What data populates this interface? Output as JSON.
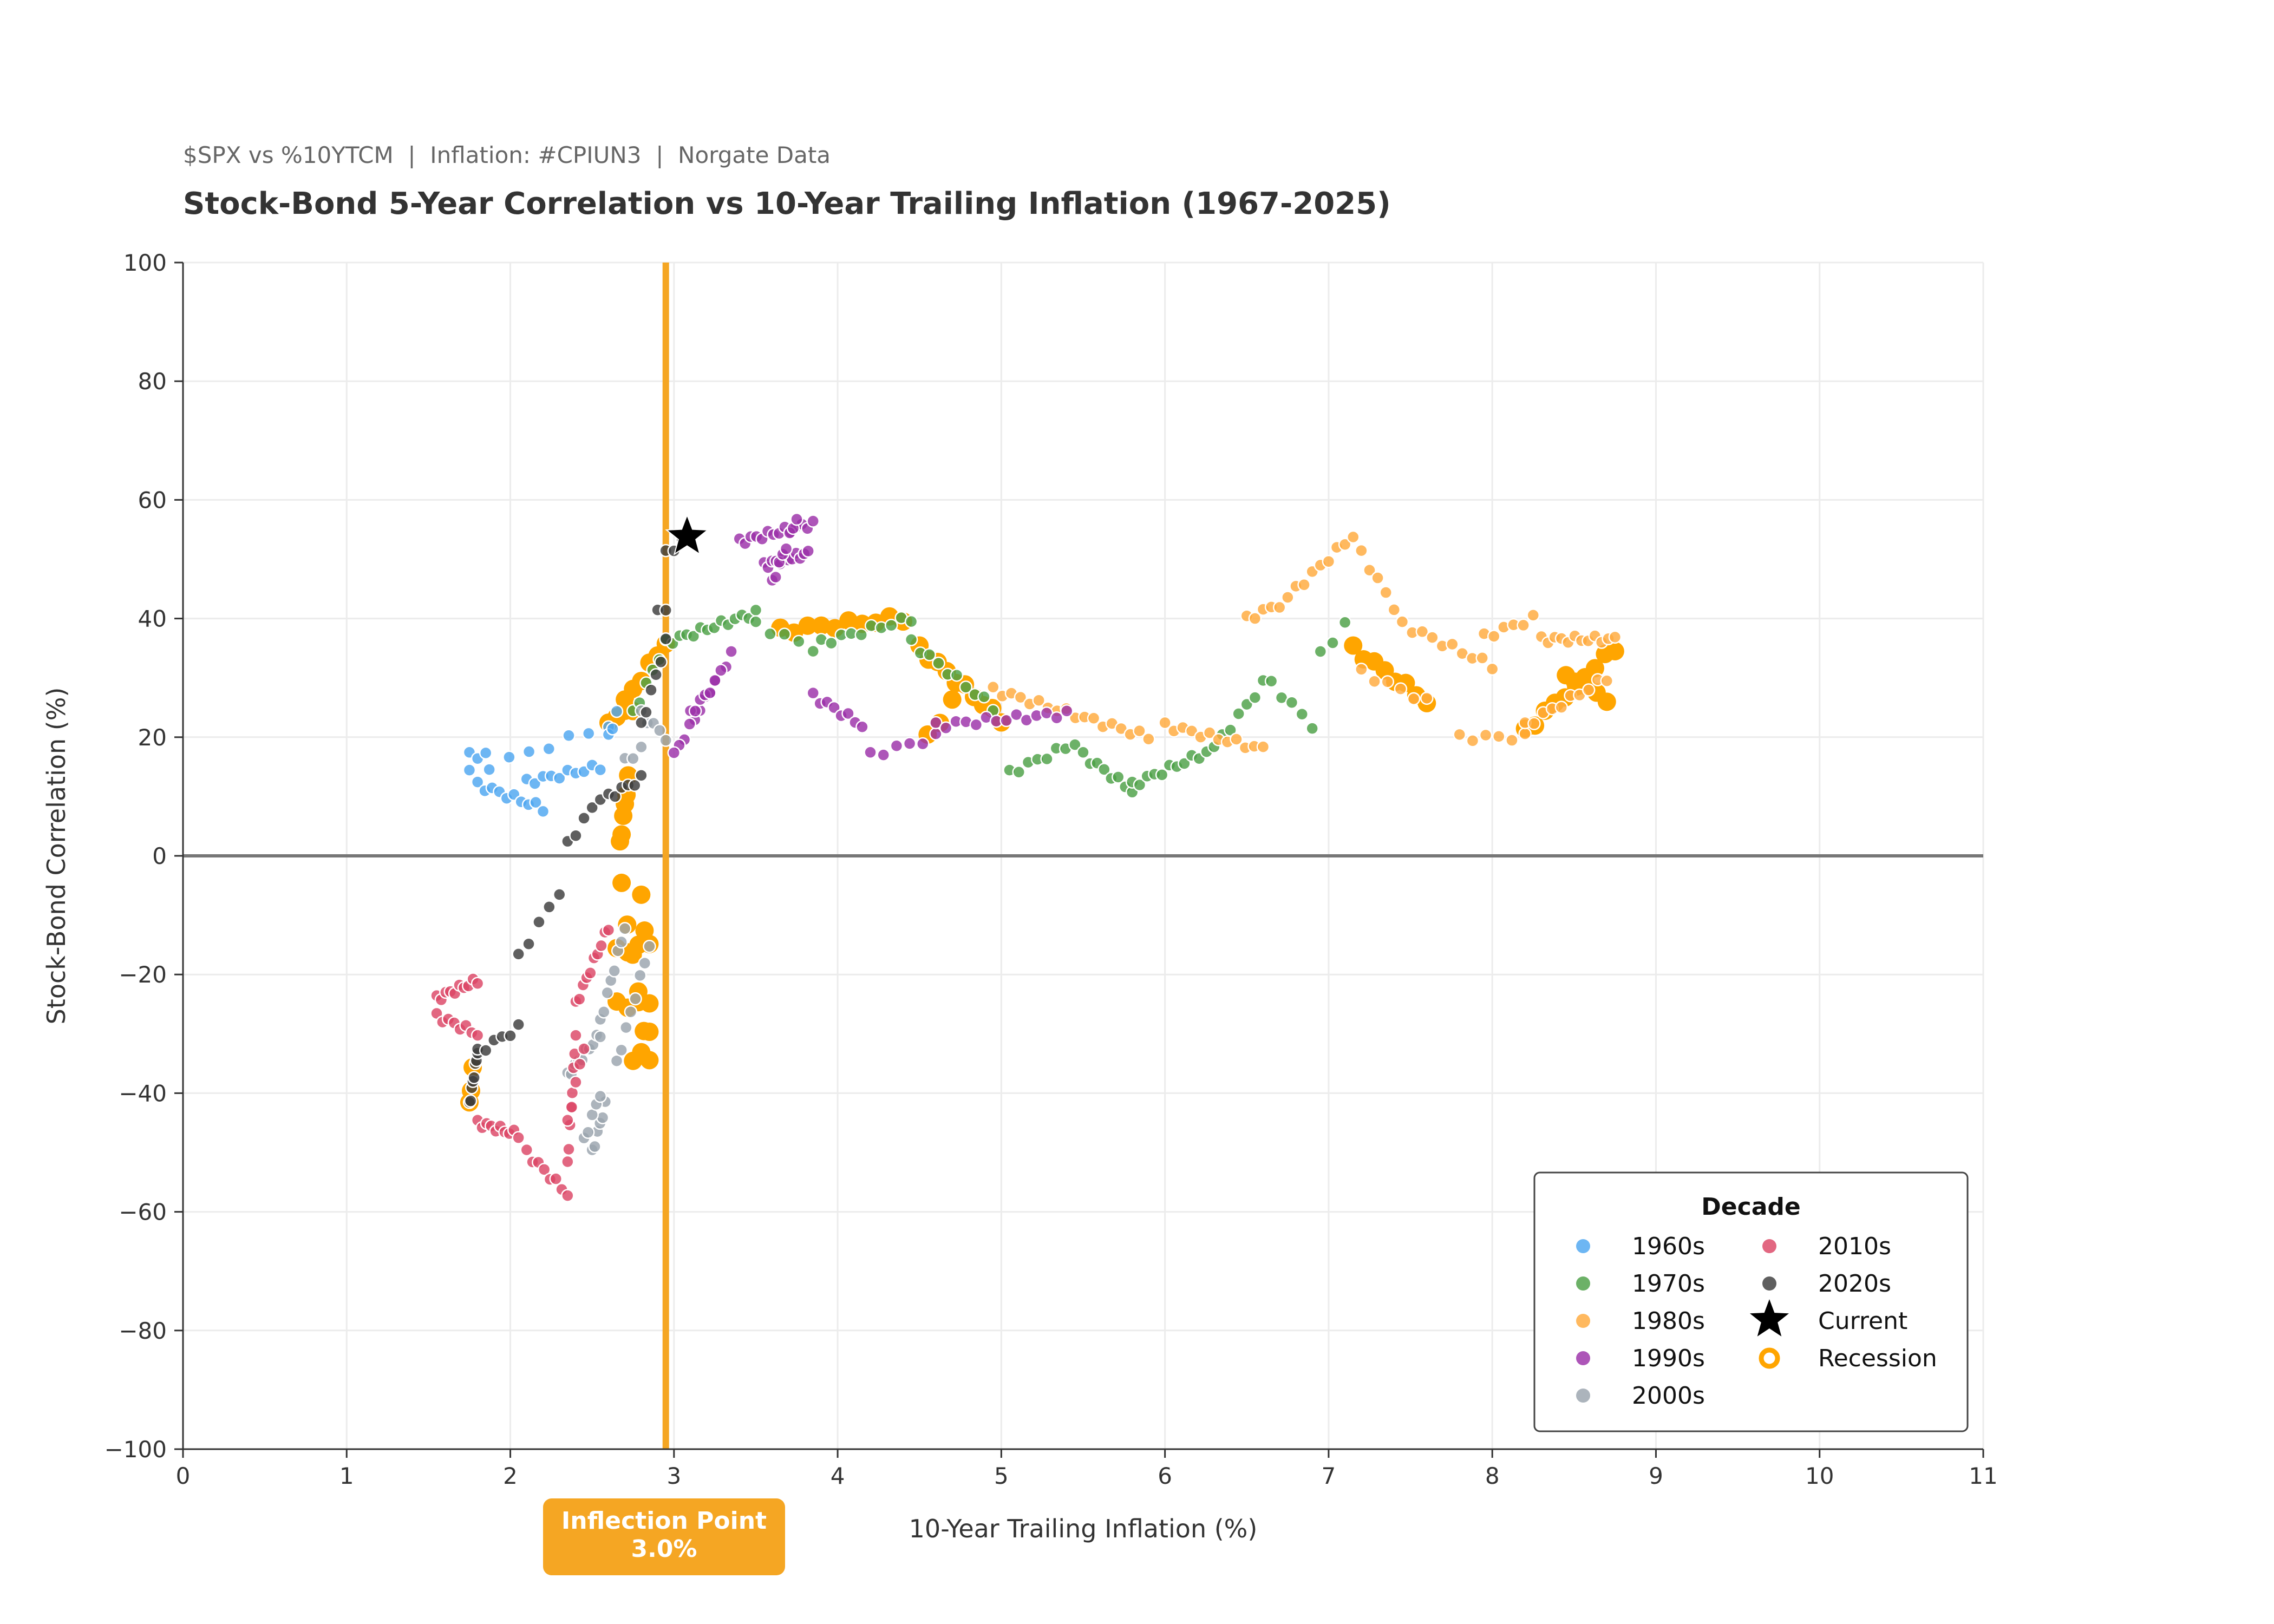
{
  "header": {
    "subtitle": "$SPX vs %10YTCM  |  Inflation: #CPIUN3  |  Norgate Data",
    "title": "Stock-Bond 5-Year Correlation vs 10-Year Trailing Inflation (1967-2025)"
  },
  "annotation": {
    "line1": "Inflection Point",
    "line2": "3.0%"
  },
  "colors": {
    "1960s": "#4DA6F0",
    "1970s": "#4CA045",
    "1980s": "#FFAA3C",
    "1990s": "#9B30A8",
    "2000s": "#9AA3AD",
    "2010s": "#DC4665",
    "2020s": "#3C3C3C",
    "recession": "#FFA500",
    "inflection_line": "#F5A623",
    "current": "#000000"
  },
  "chart_data": {
    "type": "scatter",
    "title": "Stock-Bond 5-Year Correlation vs 10-Year Trailing Inflation (1967-2025)",
    "xlabel": "10-Year Trailing Inflation (%)",
    "ylabel": "Stock-Bond Correlation (%)",
    "xlim": [
      0,
      11
    ],
    "ylim": [
      -100,
      100
    ],
    "xticks": [
      "0",
      "1",
      "2",
      "3",
      "4",
      "5",
      "6",
      "7",
      "8",
      "9",
      "10",
      "11"
    ],
    "yticks": [
      "100",
      "80",
      "60",
      "40",
      "20",
      "0",
      "−20",
      "−40",
      "−60",
      "−80",
      "−100"
    ],
    "grid": true,
    "zero_line": 0,
    "inflection_x": 2.95,
    "legend": {
      "title": "Decade",
      "position": "lower-right",
      "entries": [
        "1960s",
        "1970s",
        "1980s",
        "1990s",
        "2000s",
        "2010s",
        "2020s",
        "Current",
        "Recession"
      ]
    },
    "current": {
      "x": 3.08,
      "y": 53.8
    },
    "series": [
      {
        "name": "1960s",
        "segments": [
          {
            "from": [
              1.75,
              14
            ],
            "to": [
              2.6,
              22
            ],
            "n": 8
          },
          {
            "from": [
              1.75,
              17
            ],
            "to": [
              1.85,
              17
            ],
            "n": 3
          },
          {
            "from": [
              1.8,
              12
            ],
            "to": [
              2.2,
              8
            ],
            "n": 10
          },
          {
            "from": [
              2.1,
              12.5
            ],
            "to": [
              2.55,
              15
            ],
            "n": 10
          },
          {
            "from": [
              2.6,
              20
            ],
            "to": [
              2.65,
              24
            ],
            "n": 3
          }
        ]
      },
      {
        "name": "1970s",
        "segments": [
          {
            "from": [
              2.75,
              24
            ],
            "to": [
              2.95,
              36
            ],
            "n": 6
          },
          {
            "from": [
              2.95,
              36
            ],
            "to": [
              3.5,
              41
            ],
            "n": 14
          },
          {
            "from": [
              3.5,
              39
            ],
            "to": [
              3.85,
              35
            ],
            "n": 5
          },
          {
            "from": [
              3.9,
              36
            ],
            "to": [
              4.45,
              40
            ],
            "n": 10
          },
          {
            "from": [
              4.45,
              36
            ],
            "to": [
              4.95,
              25
            ],
            "n": 10
          },
          {
            "from": [
              5.05,
              14
            ],
            "to": [
              5.45,
              19
            ],
            "n": 8
          },
          {
            "from": [
              5.5,
              17
            ],
            "to": [
              5.8,
              11
            ],
            "n": 8
          },
          {
            "from": [
              5.8,
              12
            ],
            "to": [
              6.3,
              18
            ],
            "n": 12
          },
          {
            "from": [
              6.35,
              20
            ],
            "to": [
              6.6,
              29
            ],
            "n": 6
          },
          {
            "from": [
              6.65,
              29
            ],
            "to": [
              6.9,
              22
            ],
            "n": 5
          },
          {
            "from": [
              6.95,
              34
            ],
            "to": [
              7.1,
              39
            ],
            "n": 3
          }
        ]
      },
      {
        "name": "1980s",
        "segments": [
          {
            "from": [
              4.95,
              28
            ],
            "to": [
              5.9,
              20
            ],
            "n": 18
          },
          {
            "from": [
              6.0,
              22
            ],
            "to": [
              6.6,
              18
            ],
            "n": 12
          },
          {
            "from": [
              6.5,
              40
            ],
            "to": [
              6.75,
              43
            ],
            "n": 6
          },
          {
            "from": [
              6.8,
              45
            ],
            "to": [
              7.15,
              54
            ],
            "n": 8
          },
          {
            "from": [
              7.2,
              51
            ],
            "to": [
              7.4,
              42
            ],
            "n": 5
          },
          {
            "from": [
              7.45,
              39
            ],
            "to": [
              8.0,
              32
            ],
            "n": 10
          },
          {
            "from": [
              7.8,
              20
            ],
            "to": [
              8.2,
              20
            ],
            "n": 6
          },
          {
            "from": [
              7.95,
              37
            ],
            "to": [
              8.25,
              40
            ],
            "n": 6
          },
          {
            "from": [
              8.3,
              36.5
            ],
            "to": [
              8.75,
              36.5
            ],
            "n": 12
          },
          {
            "from": [
              7.2,
              31
            ],
            "to": [
              7.6,
              26
            ],
            "n": 6
          },
          {
            "from": [
              8.2,
              22
            ],
            "to": [
              8.7,
              30
            ],
            "n": 10
          }
        ]
      },
      {
        "name": "1990s",
        "segments": [
          {
            "from": [
              3.4,
              53
            ],
            "to": [
              3.85,
              56
            ],
            "n": 14
          },
          {
            "from": [
              3.55,
              49
            ],
            "to": [
              3.82,
              51
            ],
            "n": 12
          },
          {
            "from": [
              3.6,
              46
            ],
            "to": [
              3.75,
              57
            ],
            "n": 8
          },
          {
            "from": [
              3.35,
              34
            ],
            "to": [
              3.0,
              17
            ],
            "n": 12
          },
          {
            "from": [
              3.1,
              24
            ],
            "to": [
              3.25,
              29
            ],
            "n": 6
          },
          {
            "from": [
              3.85,
              27
            ],
            "to": [
              4.15,
              22
            ],
            "n": 8
          },
          {
            "from": [
              4.2,
              17
            ],
            "to": [
              4.6,
              20
            ],
            "n": 6
          },
          {
            "from": [
              4.6,
              22
            ],
            "to": [
              5.4,
              24
            ],
            "n": 14
          }
        ]
      },
      {
        "name": "2000s",
        "segments": [
          {
            "from": [
              2.8,
              24
            ],
            "to": [
              2.95,
              20
            ],
            "n": 5
          },
          {
            "from": [
              2.5,
              -50
            ],
            "to": [
              2.58,
              -42
            ],
            "n": 6
          },
          {
            "from": [
              2.35,
              -37
            ],
            "to": [
              2.55,
              -30
            ],
            "n": 10
          },
          {
            "from": [
              2.45,
              -48
            ],
            "to": [
              2.55,
              -40
            ],
            "n": 5
          },
          {
            "from": [
              2.55,
              -28
            ],
            "to": [
              2.7,
              -12
            ],
            "n": 8
          },
          {
            "from": [
              2.65,
              -35
            ],
            "to": [
              2.85,
              -15
            ],
            "n": 8
          },
          {
            "from": [
              2.7,
              16
            ],
            "to": [
              2.8,
              18
            ],
            "n": 3
          }
        ]
      },
      {
        "name": "2010s",
        "segments": [
          {
            "from": [
              1.55,
              -24
            ],
            "to": [
              1.8,
              -21
            ],
            "n": 10
          },
          {
            "from": [
              1.55,
              -27
            ],
            "to": [
              1.8,
              -30
            ],
            "n": 8
          },
          {
            "from": [
              1.8,
              -45
            ],
            "to": [
              2.05,
              -47
            ],
            "n": 10
          },
          {
            "from": [
              2.1,
              -50
            ],
            "to": [
              2.35,
              -57
            ],
            "n": 8
          },
          {
            "from": [
              2.35,
              -52
            ],
            "to": [
              2.4,
              -30
            ],
            "n": 8
          },
          {
            "from": [
              2.4,
              -25
            ],
            "to": [
              2.6,
              -12
            ],
            "n": 10
          },
          {
            "from": [
              2.35,
              -45
            ],
            "to": [
              2.45,
              -32
            ],
            "n": 5
          }
        ]
      },
      {
        "name": "2020s",
        "segments": [
          {
            "from": [
              1.75,
              -42
            ],
            "to": [
              1.8,
              -33
            ],
            "n": 8
          },
          {
            "from": [
              1.8,
              -33
            ],
            "to": [
              2.05,
              -29
            ],
            "n": 6
          },
          {
            "from": [
              2.05,
              -17
            ],
            "to": [
              2.3,
              -6
            ],
            "n": 5
          },
          {
            "from": [
              2.35,
              2
            ],
            "to": [
              2.55,
              10
            ],
            "n": 5
          },
          {
            "from": [
              2.6,
              10
            ],
            "to": [
              2.8,
              13
            ],
            "n": 6
          },
          {
            "from": [
              2.8,
              22
            ],
            "to": [
              2.95,
              36
            ],
            "n": 6
          },
          {
            "from": [
              2.95,
              51
            ],
            "to": [
              3.05,
              53
            ],
            "n": 3
          },
          {
            "from": [
              2.9,
              41
            ],
            "to": [
              2.95,
              42
            ],
            "n": 2
          }
        ]
      }
    ],
    "recessions": [
      {
        "from": [
          2.67,
          2
        ],
        "to": [
          2.72,
          13
        ],
        "n": 6
      },
      {
        "from": [
          2.6,
          22
        ],
        "to": [
          2.95,
          36
        ],
        "n": 8
      },
      {
        "from": [
          2.7,
          24
        ],
        "to": [
          2.75,
          25
        ],
        "n": 2
      },
      {
        "from": [
          2.68,
          -5
        ],
        "to": [
          2.85,
          -35
        ],
        "n": 6
      },
      {
        "from": [
          2.65,
          -16
        ],
        "to": [
          2.85,
          -15
        ],
        "n": 4
      },
      {
        "from": [
          2.65,
          -25
        ],
        "to": [
          2.85,
          -25
        ],
        "n": 4
      },
      {
        "from": [
          2.8,
          -7
        ],
        "to": [
          2.82,
          -12
        ],
        "n": 2
      },
      {
        "from": [
          2.75,
          -35
        ],
        "to": [
          2.85,
          -30
        ],
        "n": 3
      },
      {
        "from": [
          3.65,
          38
        ],
        "to": [
          4.4,
          40
        ],
        "n": 10
      },
      {
        "from": [
          4.5,
          35
        ],
        "to": [
          5.0,
          23
        ],
        "n": 10
      },
      {
        "from": [
          4.55,
          20
        ],
        "to": [
          4.7,
          26
        ],
        "n": 3
      },
      {
        "from": [
          7.15,
          35
        ],
        "to": [
          7.6,
          26
        ],
        "n": 8
      },
      {
        "from": [
          8.2,
          21
        ],
        "to": [
          8.75,
          35
        ],
        "n": 10
      },
      {
        "from": [
          8.45,
          30
        ],
        "to": [
          8.7,
          26.5
        ],
        "n": 5
      },
      {
        "from": [
          1.75,
          -42
        ],
        "to": [
          1.77,
          -36
        ],
        "n": 3
      }
    ]
  }
}
